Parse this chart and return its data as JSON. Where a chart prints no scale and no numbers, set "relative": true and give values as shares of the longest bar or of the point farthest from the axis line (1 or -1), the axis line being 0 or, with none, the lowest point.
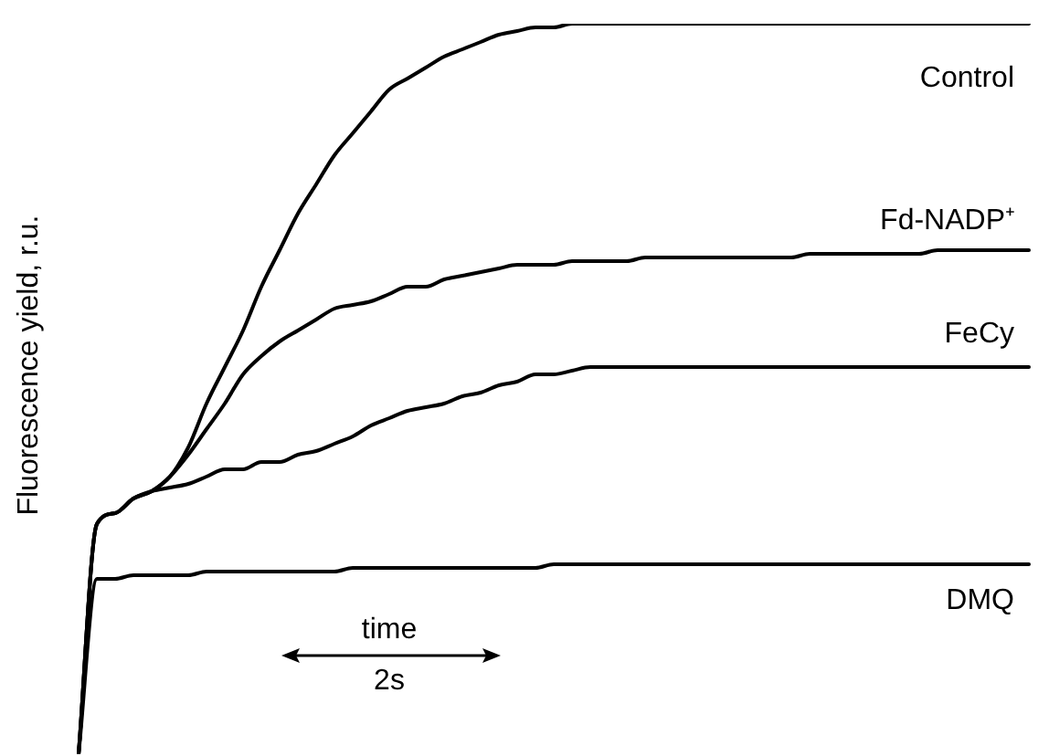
{
  "chart_data": {
    "type": "line",
    "relative": true,
    "ylabel": "Fluorescence yield, r.u.",
    "marker": "none",
    "categories": [
      null,
      null,
      null,
      null,
      null,
      null,
      null,
      null,
      null,
      null,
      null,
      null,
      null,
      null,
      null,
      null,
      null,
      null,
      null,
      null,
      null,
      null,
      null,
      null,
      null,
      null,
      null,
      null,
      null,
      null,
      null,
      null,
      null,
      null,
      null,
      null,
      null,
      null,
      null,
      null,
      null,
      null,
      null,
      null,
      null,
      null,
      null,
      null,
      null,
      null,
      null,
      null,
      null
    ],
    "series": [
      {
        "name": "Control",
        "color": "#000000",
        "values": [
          0,
          0.315,
          0.33,
          0.35,
          0.36,
          0.38,
          0.42,
          0.48,
          0.53,
          0.58,
          0.64,
          0.69,
          0.74,
          0.78,
          0.82,
          0.85,
          0.88,
          0.91,
          0.925,
          0.94,
          0.955,
          0.965,
          0.975,
          0.985,
          0.99,
          0.995,
          0.995,
          1,
          1,
          1,
          1,
          1,
          1,
          1,
          1,
          1,
          1,
          1,
          1,
          1,
          1,
          1,
          1,
          1,
          1,
          1,
          1,
          1,
          1,
          1,
          1,
          1,
          1
        ]
      },
      {
        "name": "Fd-NADP⁺",
        "color": "#000000",
        "values": [
          0,
          0.315,
          0.33,
          0.35,
          0.36,
          0.38,
          0.41,
          0.445,
          0.48,
          0.52,
          0.545,
          0.565,
          0.58,
          0.595,
          0.61,
          0.615,
          0.62,
          0.63,
          0.64,
          0.64,
          0.65,
          0.655,
          0.66,
          0.665,
          0.67,
          0.67,
          0.67,
          0.675,
          0.675,
          0.675,
          0.675,
          0.68,
          0.68,
          0.68,
          0.68,
          0.68,
          0.68,
          0.68,
          0.68,
          0.68,
          0.685,
          0.685,
          0.685,
          0.685,
          0.685,
          0.685,
          0.685,
          0.69,
          0.69,
          0.69,
          0.69,
          0.69,
          0.69
        ]
      },
      {
        "name": "FeCy",
        "color": "#000000",
        "values": [
          0,
          0.315,
          0.33,
          0.35,
          0.36,
          0.365,
          0.37,
          0.38,
          0.39,
          0.39,
          0.4,
          0.4,
          0.41,
          0.415,
          0.425,
          0.435,
          0.45,
          0.46,
          0.47,
          0.475,
          0.48,
          0.49,
          0.495,
          0.505,
          0.51,
          0.52,
          0.52,
          0.525,
          0.53,
          0.53,
          0.53,
          0.53,
          0.53,
          0.53,
          0.53,
          0.53,
          0.53,
          0.53,
          0.53,
          0.53,
          0.53,
          0.53,
          0.53,
          0.53,
          0.53,
          0.53,
          0.53,
          0.53,
          0.53,
          0.53,
          0.53,
          0.53,
          0.53
        ]
      },
      {
        "name": "DMQ",
        "color": "#000000",
        "values": [
          0,
          0.24,
          0.24,
          0.245,
          0.245,
          0.245,
          0.245,
          0.25,
          0.25,
          0.25,
          0.25,
          0.25,
          0.25,
          0.25,
          0.25,
          0.255,
          0.255,
          0.255,
          0.255,
          0.255,
          0.255,
          0.255,
          0.255,
          0.255,
          0.255,
          0.255,
          0.26,
          0.26,
          0.26,
          0.26,
          0.26,
          0.26,
          0.26,
          0.26,
          0.26,
          0.26,
          0.26,
          0.26,
          0.26,
          0.26,
          0.26,
          0.26,
          0.26,
          0.26,
          0.26,
          0.26,
          0.26,
          0.26,
          0.26,
          0.26,
          0.26,
          0.26,
          0.26
        ]
      }
    ],
    "annotations": [
      "time",
      "2s"
    ]
  }
}
